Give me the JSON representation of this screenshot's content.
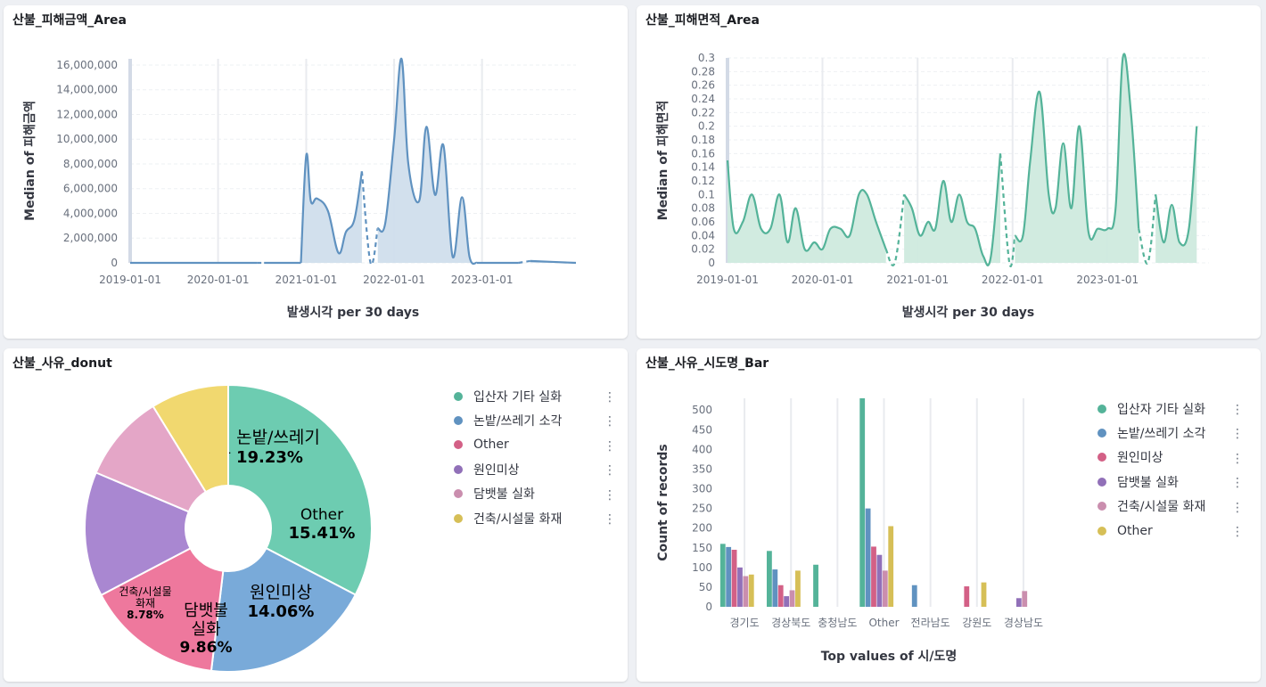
{
  "panels": {
    "p1": {
      "title": "산불_피해금액_Area"
    },
    "p2": {
      "title": "산불_피해면적_Area"
    },
    "p3": {
      "title": "산불_사유_donut"
    },
    "p4": {
      "title": "산불_사유_시도명_Bar"
    }
  },
  "legend_menu_icon": "vertical-dots",
  "chart_data": [
    {
      "type": "area",
      "title": "산불_피해금액_Area",
      "xlabel": "발생시각 per 30 days",
      "ylabel": "Median of 피해금액",
      "color": "#6092c0",
      "fill": "#d0deec",
      "x_tick_labels": [
        "2019-01-01",
        "2020-01-01",
        "2021-01-01",
        "2022-01-01",
        "2023-01-01"
      ],
      "y_tick_labels": [
        "0",
        "2,000,000",
        "4,000,000",
        "6,000,000",
        "8,000,000",
        "10,000,000",
        "12,000,000",
        "14,000,000",
        "16,000,000"
      ],
      "ylim": [
        0,
        16500000
      ],
      "x_range": [
        "2019-01-01",
        "2024-01-26"
      ],
      "segments": [
        {
          "style": "solid",
          "points": [
            [
              "2019-01-01",
              0
            ],
            [
              "2020-06-10",
              0
            ]
          ]
        },
        {
          "style": "dashed",
          "points": [
            [
              "2020-06-10",
              0
            ],
            [
              "2020-07-10",
              0
            ]
          ]
        },
        {
          "style": "solid",
          "points": [
            [
              "2020-07-10",
              0
            ],
            [
              "2020-12-10",
              0
            ]
          ]
        },
        {
          "style": "solid",
          "points": [
            [
              "2020-12-10",
              0
            ],
            [
              "2021-01-01",
              8700000
            ],
            [
              "2021-01-20",
              5000000
            ],
            [
              "2021-02-15",
              5200000
            ],
            [
              "2021-04-01",
              4200000
            ],
            [
              "2021-05-15",
              800000
            ],
            [
              "2021-06-15",
              2500000
            ],
            [
              "2021-07-20",
              3500000
            ],
            [
              "2021-08-20",
              7400000
            ]
          ]
        },
        {
          "style": "dashed",
          "points": [
            [
              "2021-08-20",
              7400000
            ],
            [
              "2021-09-25",
              0
            ],
            [
              "2021-10-25",
              2800000
            ]
          ]
        },
        {
          "style": "solid",
          "points": [
            [
              "2021-10-25",
              2800000
            ],
            [
              "2021-11-25",
              3200000
            ],
            [
              "2022-01-01",
              10000000
            ],
            [
              "2022-02-01",
              16500000
            ],
            [
              "2022-03-01",
              8000000
            ],
            [
              "2022-04-15",
              5000000
            ],
            [
              "2022-05-15",
              11000000
            ],
            [
              "2022-06-20",
              5500000
            ],
            [
              "2022-07-25",
              9500000
            ],
            [
              "2022-09-01",
              500000
            ],
            [
              "2022-10-10",
              5300000
            ],
            [
              "2022-11-10",
              500000
            ],
            [
              "2022-12-10",
              0
            ]
          ]
        },
        {
          "style": "solid",
          "points": [
            [
              "2022-12-10",
              0
            ],
            [
              "2023-06-01",
              0
            ]
          ]
        },
        {
          "style": "dashed",
          "points": [
            [
              "2023-06-01",
              0
            ],
            [
              "2023-07-20",
              150000
            ]
          ]
        },
        {
          "style": "solid",
          "points": [
            [
              "2023-07-20",
              150000
            ],
            [
              "2024-01-26",
              0
            ]
          ]
        }
      ]
    },
    {
      "type": "area",
      "title": "산불_피해면적_Area",
      "xlabel": "발생시각 per 30 days",
      "ylabel": "Median of 피해면적",
      "color": "#54b399",
      "fill": "#cfeade",
      "x_tick_labels": [
        "2019-01-01",
        "2020-01-01",
        "2021-01-01",
        "2022-01-01",
        "2023-01-01"
      ],
      "y_tick_labels": [
        "0",
        "0.02",
        "0.04",
        "0.06",
        "0.08",
        "0.1",
        "0.12",
        "0.14",
        "0.16",
        "0.18",
        "0.2",
        "0.22",
        "0.24",
        "0.26",
        "0.28",
        "0.3"
      ],
      "ylim": [
        0,
        0.3
      ],
      "x_range": [
        "2019-01-01",
        "2024-01-26"
      ],
      "segments": [
        {
          "style": "solid",
          "points": [
            [
              "2019-01-01",
              0.15
            ],
            [
              "2019-01-25",
              0.05
            ],
            [
              "2019-03-01",
              0.06
            ],
            [
              "2019-04-05",
              0.1
            ],
            [
              "2019-05-10",
              0.05
            ],
            [
              "2019-06-15",
              0.05
            ],
            [
              "2019-07-20",
              0.1
            ],
            [
              "2019-08-20",
              0.03
            ],
            [
              "2019-09-20",
              0.08
            ],
            [
              "2019-10-25",
              0.02
            ],
            [
              "2019-12-01",
              0.03
            ],
            [
              "2020-01-01",
              0.02
            ],
            [
              "2020-02-01",
              0.05
            ],
            [
              "2020-03-10",
              0.05
            ],
            [
              "2020-04-15",
              0.04
            ],
            [
              "2020-05-20",
              0.1
            ],
            [
              "2020-06-20",
              0.1
            ],
            [
              "2020-07-25",
              0.06
            ],
            [
              "2020-09-01",
              0.02
            ]
          ]
        },
        {
          "style": "dashed",
          "points": [
            [
              "2020-09-01",
              0.02
            ],
            [
              "2020-10-05",
              0
            ],
            [
              "2020-11-10",
              0.1
            ]
          ]
        },
        {
          "style": "solid",
          "points": [
            [
              "2020-11-10",
              0.1
            ],
            [
              "2020-12-10",
              0.08
            ],
            [
              "2021-01-10",
              0.04
            ],
            [
              "2021-02-10",
              0.06
            ],
            [
              "2021-03-10",
              0.05
            ],
            [
              "2021-04-10",
              0.12
            ],
            [
              "2021-05-10",
              0.06
            ],
            [
              "2021-06-10",
              0.1
            ],
            [
              "2021-07-10",
              0.06
            ],
            [
              "2021-08-10",
              0.05
            ],
            [
              "2021-09-10",
              0.01
            ],
            [
              "2021-10-10",
              0.01
            ],
            [
              "2021-11-15",
              0.16
            ]
          ]
        },
        {
          "style": "dashed",
          "points": [
            [
              "2021-11-15",
              0.16
            ],
            [
              "2021-12-20",
              0
            ],
            [
              "2022-01-10",
              0.04
            ]
          ]
        },
        {
          "style": "solid",
          "points": [
            [
              "2022-01-10",
              0.04
            ],
            [
              "2022-02-10",
              0.04
            ],
            [
              "2022-03-10",
              0.15
            ],
            [
              "2022-04-15",
              0.25
            ],
            [
              "2022-05-20",
              0.1
            ],
            [
              "2022-06-15",
              0.08
            ],
            [
              "2022-07-15",
              0.175
            ],
            [
              "2022-08-15",
              0.08
            ],
            [
              "2022-09-15",
              0.2
            ],
            [
              "2022-10-20",
              0.045
            ],
            [
              "2022-11-25",
              0.05
            ],
            [
              "2023-01-01",
              0.05
            ],
            [
              "2023-02-01",
              0.08
            ],
            [
              "2023-03-01",
              0.3
            ],
            [
              "2023-04-01",
              0.22
            ],
            [
              "2023-05-01",
              0.05
            ]
          ]
        },
        {
          "style": "dashed",
          "points": [
            [
              "2023-05-01",
              0.05
            ],
            [
              "2023-06-05",
              0
            ],
            [
              "2023-07-05",
              0.1
            ]
          ]
        },
        {
          "style": "solid",
          "points": [
            [
              "2023-07-05",
              0.1
            ],
            [
              "2023-08-05",
              0.03
            ],
            [
              "2023-09-05",
              0.085
            ],
            [
              "2023-10-05",
              0.03
            ],
            [
              "2023-11-10",
              0.05
            ],
            [
              "2023-12-10",
              0.2
            ]
          ]
        }
      ]
    },
    {
      "type": "pie",
      "title": "산불_사유_donut",
      "slices": [
        {
          "label": "입산자 기타 실화",
          "value": 32.66,
          "pct": "32.66%",
          "color": "#6dccb1",
          "lines": [
            "입산자",
            "기타 실화"
          ]
        },
        {
          "label": "논밭/쓰레기 소각",
          "value": 19.23,
          "pct": "19.23%",
          "color": "#79aad9",
          "lines": [
            "논밭/쓰레기",
            "소각"
          ]
        },
        {
          "label": "Other",
          "value": 15.41,
          "pct": "15.41%",
          "color": "#ee789d",
          "lines": [
            "Other"
          ]
        },
        {
          "label": "원인미상",
          "value": 14.06,
          "pct": "14.06%",
          "color": "#a987d1",
          "lines": [
            "원인미상"
          ]
        },
        {
          "label": "담뱃불 실화",
          "value": 9.86,
          "pct": "9.86%",
          "color": "#e4a6c7",
          "lines": [
            "담뱃불",
            "실화"
          ]
        },
        {
          "label": "건축/시설물 화재",
          "value": 8.78,
          "pct": "8.78%",
          "color": "#f1d86f",
          "lines": [
            "건축/시설물",
            "화재"
          ]
        }
      ],
      "legend": [
        "입산자 기타 실화",
        "논밭/쓰레기 소각",
        "Other",
        "원인미상",
        "담뱃불 실화",
        "건축/시설물 화재"
      ],
      "legend_colors": [
        "#54b399",
        "#6092c0",
        "#d36086",
        "#9170b8",
        "#ca8eae",
        "#d6bf57"
      ]
    },
    {
      "type": "bar",
      "title": "산불_사유_시도명_Bar",
      "xlabel": "Top values of 시/도명",
      "ylabel": "Count of records",
      "categories": [
        "경기도",
        "경상북도",
        "충청남도",
        "Other",
        "전라남도",
        "강원도",
        "경상남도"
      ],
      "y_tick_labels": [
        "0",
        "50",
        "100",
        "150",
        "200",
        "250",
        "300",
        "350",
        "400",
        "450",
        "500"
      ],
      "ylim": [
        0,
        530
      ],
      "series": [
        {
          "name": "입산자 기타 실화",
          "color": "#54b399",
          "values": [
            160,
            142,
            107,
            530,
            0,
            0,
            0
          ]
        },
        {
          "name": "논밭/쓰레기 소각",
          "color": "#6092c0",
          "values": [
            152,
            95,
            0,
            250,
            55,
            0,
            0
          ]
        },
        {
          "name": "원인미상",
          "color": "#d36086",
          "values": [
            145,
            55,
            0,
            153,
            0,
            52,
            0
          ]
        },
        {
          "name": "담뱃불 실화",
          "color": "#9170b8",
          "values": [
            100,
            27,
            0,
            132,
            0,
            0,
            22
          ]
        },
        {
          "name": "건축/시설물 화재",
          "color": "#ca8eae",
          "values": [
            78,
            42,
            0,
            92,
            0,
            0,
            40
          ]
        },
        {
          "name": "Other",
          "color": "#d6bf57",
          "values": [
            82,
            92,
            0,
            205,
            0,
            62,
            0
          ]
        }
      ],
      "legend_placement": "right"
    }
  ]
}
